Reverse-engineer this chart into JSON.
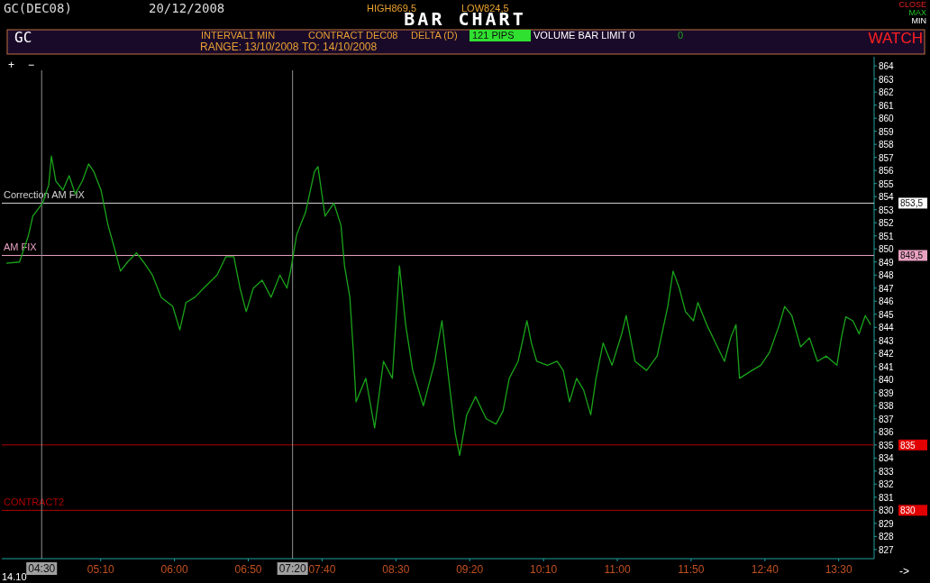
{
  "chart_data": {
    "type": "line",
    "title": "BAR CHART",
    "x": [
      4.1,
      4.25,
      4.35,
      4.4,
      4.51,
      4.58,
      4.61,
      4.66,
      4.74,
      4.81,
      4.88,
      4.96,
      5.03,
      5.09,
      5.17,
      5.25,
      5.32,
      5.39,
      5.47,
      5.57,
      5.65,
      5.75,
      5.85,
      5.98,
      6.06,
      6.13,
      6.23,
      6.33,
      6.48,
      6.58,
      6.67,
      6.74,
      6.81,
      6.89,
      6.99,
      7.09,
      7.19,
      7.27,
      7.31,
      7.38,
      7.48,
      7.58,
      7.62,
      7.7,
      7.8,
      7.88,
      7.92,
      7.98,
      8.02,
      8.05,
      8.16,
      8.26,
      8.36,
      8.46,
      8.54,
      8.61,
      8.69,
      8.81,
      8.94,
      9.02,
      9.09,
      9.17,
      9.22,
      9.3,
      9.4,
      9.52,
      9.63,
      9.71,
      9.78,
      9.88,
      9.98,
      10.03,
      10.09,
      10.21,
      10.32,
      10.39,
      10.46,
      10.54,
      10.62,
      10.7,
      10.76,
      10.84,
      10.94,
      11.05,
      11.1,
      11.2,
      11.33,
      11.45,
      11.57,
      11.63,
      11.7,
      11.77,
      11.86,
      11.91,
      12.01,
      12.11,
      12.21,
      12.28,
      12.34,
      12.38,
      12.52,
      12.62,
      12.72,
      12.83,
      12.89,
      12.97,
      13.07,
      13.17,
      13.26,
      13.36,
      13.48,
      13.53,
      13.58,
      13.66,
      13.73,
      13.8,
      13.86
    ],
    "series": [
      {
        "color": "#1aa31a",
        "values": [
          848.9,
          849.0,
          851.0,
          852.5,
          853.5,
          854.9,
          857.1,
          855.2,
          854.5,
          855.6,
          854.2,
          855.2,
          856.5,
          855.9,
          854.5,
          851.8,
          850.1,
          848.3,
          849.0,
          849.7,
          849.0,
          848.0,
          846.3,
          845.6,
          843.8,
          845.9,
          846.3,
          847.0,
          848.0,
          849.4,
          849.4,
          847.0,
          845.2,
          847.0,
          847.6,
          846.3,
          848.0,
          847.0,
          848.3,
          851.1,
          852.8,
          855.9,
          856.3,
          852.5,
          853.5,
          851.8,
          848.7,
          846.3,
          842.1,
          838.3,
          840.1,
          836.3,
          841.4,
          840.1,
          848.7,
          844.2,
          840.7,
          838.0,
          841.4,
          844.5,
          840.4,
          835.9,
          834.2,
          837.3,
          838.7,
          837.0,
          836.6,
          837.6,
          840.1,
          841.4,
          844.5,
          842.8,
          841.4,
          841.1,
          841.4,
          840.7,
          838.3,
          840.1,
          839.2,
          837.3,
          840.1,
          842.8,
          841.1,
          843.5,
          844.9,
          841.4,
          840.7,
          841.8,
          845.6,
          848.3,
          847.0,
          845.2,
          844.5,
          845.9,
          844.2,
          842.8,
          841.4,
          843.2,
          844.2,
          840.1,
          840.7,
          841.1,
          842.1,
          844.2,
          845.6,
          844.9,
          842.5,
          843.2,
          841.4,
          841.8,
          841.1,
          843.2,
          844.8,
          844.5,
          843.5,
          844.9,
          844.2
        ]
      }
    ],
    "xlim": [
      4.05,
      13.9
    ],
    "ylim": [
      826.3,
      864.7
    ],
    "xticks": [
      {
        "value": 5.1667,
        "label": "05:10"
      },
      {
        "value": 6,
        "label": "06:00"
      },
      {
        "value": 6.8333,
        "label": "06:50"
      },
      {
        "value": 7.6667,
        "label": "07:40"
      },
      {
        "value": 8.5,
        "label": "08:30"
      },
      {
        "value": 9.3333,
        "label": "09:20"
      },
      {
        "value": 10.1667,
        "label": "10:10"
      },
      {
        "value": 11,
        "label": "11:00"
      },
      {
        "value": 11.8333,
        "label": "11:50"
      },
      {
        "value": 12.6667,
        "label": "12:40"
      },
      {
        "value": 13.5,
        "label": "13:30"
      }
    ],
    "yticks": [
      827,
      828,
      829,
      830,
      831,
      832,
      833,
      834,
      835,
      836,
      837,
      838,
      839,
      840,
      841,
      842,
      843,
      844,
      845,
      846,
      847,
      848,
      849,
      850,
      851,
      852,
      853,
      854,
      855,
      856,
      857,
      858,
      859,
      860,
      861,
      862,
      863,
      864
    ],
    "ref_lines": [
      {
        "axis": "y",
        "value": 853.5,
        "label": "Correction AM FIX",
        "color": "#d0d0d0"
      },
      {
        "axis": "y",
        "value": 849.5,
        "label": "AM FIX",
        "color": "#e8a0c0"
      },
      {
        "axis": "y",
        "value": 835,
        "label": null,
        "color": "#b00000"
      },
      {
        "axis": "y",
        "value": 830,
        "label": "CONTRACT2",
        "color": "#b00000"
      },
      {
        "axis": "x",
        "value": 4.5,
        "label": "04:30",
        "color": "#909090"
      },
      {
        "axis": "x",
        "value": 7.3333,
        "label": "07:20",
        "color": "#909090"
      }
    ],
    "annotations": [
      "GC(DEC08)",
      "20/12/2008",
      "HIGH869,5",
      "LOW824,5",
      "CLOSE",
      "MAX",
      "MIN",
      "GC",
      "INTERVAL1 MIN",
      "CONTRACT DEC08",
      "DELTA (D)",
      "121 PIPS",
      "VOLUME BAR LIMIT 0",
      "0",
      "WATCH",
      "RANGE: 13/10/2008",
      "TO: 14/10/2008",
      "14.10",
      "->",
      "+",
      "−",
      "853,5",
      "849,5",
      "835",
      "830"
    ],
    "grid": false,
    "marker": "none",
    "line_style": "solid"
  }
}
